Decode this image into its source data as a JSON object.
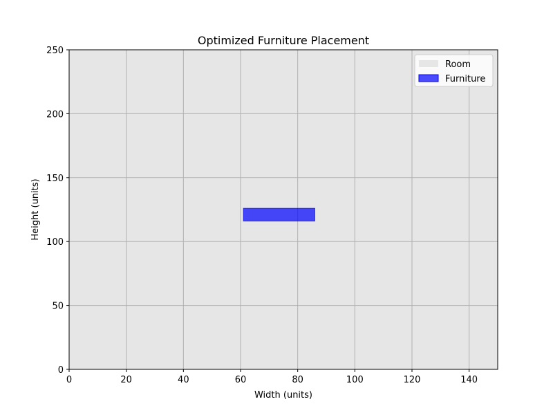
{
  "chart_data": {
    "type": "rectangles",
    "title": "Optimized Furniture Placement",
    "xlabel": "Width (units)",
    "ylabel": "Height (units)",
    "xlim": [
      0,
      150
    ],
    "ylim": [
      0,
      250
    ],
    "xticks": [
      0,
      20,
      40,
      60,
      80,
      100,
      120,
      140
    ],
    "yticks": [
      0,
      50,
      100,
      150,
      200,
      250
    ],
    "grid": true,
    "legend_position": "top-right",
    "room": {
      "label": "Room",
      "x": 0,
      "y": 0,
      "width": 150,
      "height": 250,
      "color": "#e6e6e6"
    },
    "furniture": [
      {
        "label": "Furniture",
        "x": 61,
        "y": 116,
        "width": 25,
        "height": 10,
        "color": "#0000ff"
      }
    ],
    "legend": [
      "Room",
      "Furniture"
    ]
  }
}
